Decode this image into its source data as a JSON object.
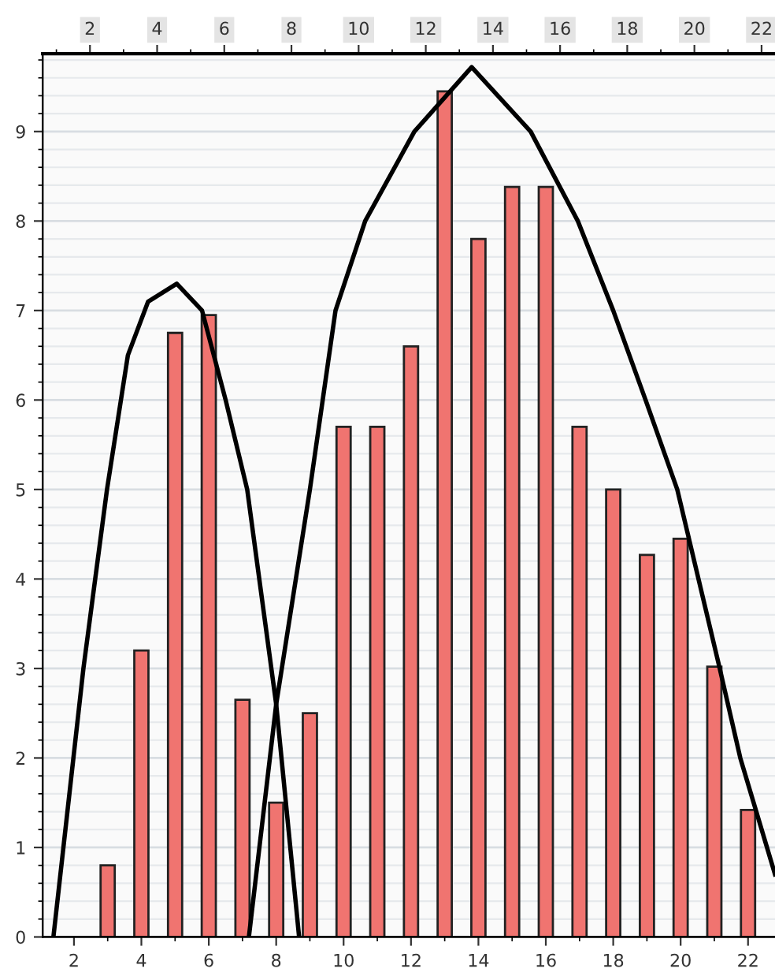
{
  "chart_data": {
    "type": "bar",
    "x": [
      3,
      4,
      5,
      6,
      7,
      8,
      9,
      10,
      11,
      12,
      13,
      14,
      15,
      16,
      17,
      18,
      19,
      20,
      21,
      22
    ],
    "series": [
      {
        "color": "#f07470",
        "values": [
          0.8,
          3.2,
          6.75,
          6.95,
          2.65,
          1.5,
          2.5,
          5.7,
          5.7,
          6.6,
          9.45,
          7.8,
          8.38,
          8.38,
          5.7,
          5.0,
          4.27,
          4.45,
          3.02,
          1.42
        ]
      },
      {
        "type": "line",
        "color": "#000000",
        "x": [
          1.39,
          2.28,
          2.98,
          3.6,
          4.2,
          5.05,
          5.8,
          6.5,
          7.14,
          8,
          8.68
        ],
        "values": [
          0,
          3,
          5,
          6.5,
          7.1,
          7.3,
          7.0,
          6.0,
          5,
          2.6,
          0
        ]
      },
      {
        "type": "line",
        "color": "#000000",
        "x": [
          7.19,
          8,
          9.0,
          9.76,
          10.64,
          12.1,
          13.8,
          15.55,
          16.95,
          18.0,
          18.96,
          19.9,
          21.16,
          21.77,
          22.8
        ],
        "values": [
          0,
          2.6,
          5,
          7,
          8,
          9,
          9.72,
          9,
          8,
          7,
          6,
          5,
          3,
          2,
          0.7
        ]
      }
    ],
    "xlim": [
      1.07,
      22.8
    ],
    "xticks": [
      2,
      4,
      6,
      8,
      10,
      12,
      14,
      16,
      18,
      20,
      22
    ],
    "x2lim": [
      0.59,
      22.4
    ],
    "x2ticks": [
      2,
      4,
      6,
      8,
      10,
      12,
      14,
      16,
      18,
      20,
      22
    ],
    "ylim": [
      0,
      9.87
    ],
    "yticks": [
      0,
      1,
      2,
      3,
      4,
      5,
      6,
      7,
      8,
      9
    ],
    "grid": "y",
    "marker": "none",
    "line_style": "solid",
    "legend": false
  }
}
